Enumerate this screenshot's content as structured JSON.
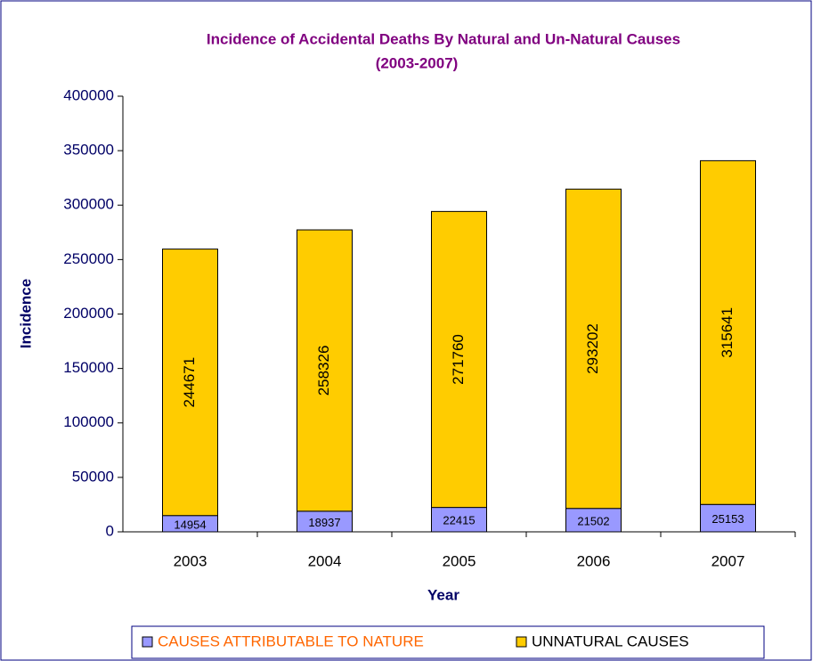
{
  "chart_data": {
    "type": "stacked-bar",
    "title": "Incidence of Accidental Deaths By Natural and Un-Natural Causes",
    "subtitle": "(2003-2007)",
    "x_label": "Year",
    "y_label": "Incidence",
    "categories": [
      "2003",
      "2004",
      "2005",
      "2006",
      "2007"
    ],
    "series": [
      {
        "name": "CAUSES ATTRIBUTABLE TO NATURE",
        "color": "#9999ff",
        "values": [
          14954,
          18937,
          22415,
          21502,
          25153
        ]
      },
      {
        "name": "UNNATURAL CAUSES",
        "color": "#ffcc00",
        "values": [
          244671,
          258326,
          271760,
          293202,
          315641
        ]
      }
    ],
    "ylim": [
      0,
      400000
    ],
    "yticks": [
      0,
      50000,
      100000,
      150000,
      200000,
      250000,
      300000,
      350000,
      400000
    ],
    "grid": false,
    "legend": "bottom"
  }
}
